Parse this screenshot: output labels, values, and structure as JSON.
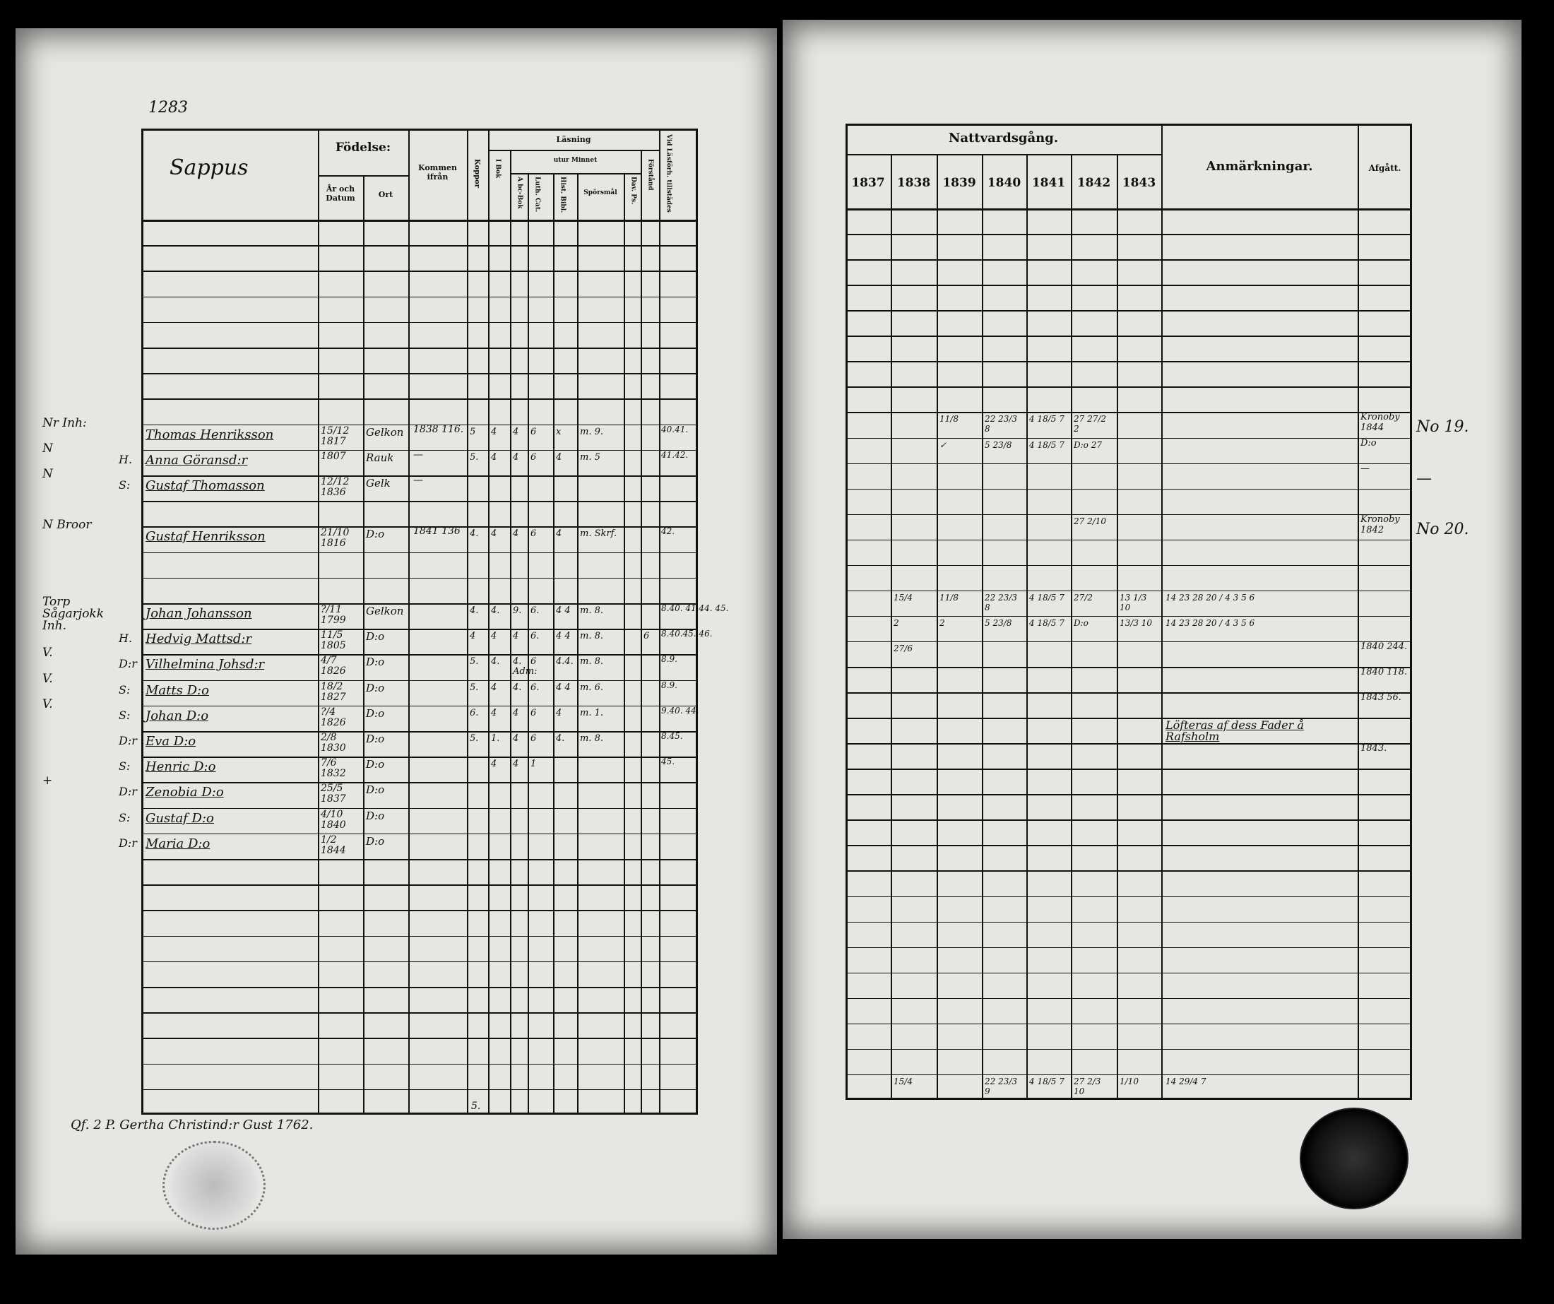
{
  "left_page": {
    "page_number": "1283",
    "header": {
      "village": "Sappus",
      "birth": "Födelse:",
      "year_date": "År och Datum",
      "place": "Ort",
      "came_from": "Kommen ifrån",
      "smallpox": "Koppor",
      "reading": "Läsning",
      "by_heart": "utur Minnet",
      "in_book": "I Bok",
      "abc_book": "A bc-Bok",
      "luther_cat": "Luth. Cat.",
      "hist": "Hist. Bibl.",
      "questions": "Spörsmål",
      "psalms": "Dav. Ps.",
      "understanding": "Förstånd",
      "attended": "Vid Läsförh. tillstädes"
    },
    "persons": [
      {
        "margin": "Nr Inh:",
        "relation": "",
        "name": "Thomas Henriksson",
        "birth_date": "15/12 1817",
        "birth_place": "Gelkon",
        "came_from": "1838 116.",
        "readings": [
          "5",
          "4",
          "4",
          "6",
          "x",
          "m. 9.",
          "",
          ""
        ],
        "attended": "40.41."
      },
      {
        "margin": "N",
        "relation": "H.",
        "name": "Anna Göransd:r",
        "birth_date": "1807",
        "birth_place": "Rauk",
        "came_from": "—",
        "readings": [
          "5.",
          "4",
          "4",
          "6",
          "4",
          "m. 5",
          "",
          ""
        ],
        "attended": "41.42."
      },
      {
        "margin": "N",
        "relation": "S:",
        "name": "Gustaf Thomasson",
        "birth_date": "12/12 1836",
        "birth_place": "Gelk",
        "came_from": "—",
        "readings": [
          "",
          "",
          "",
          "",
          "",
          "",
          "",
          ""
        ],
        "attended": ""
      },
      {
        "margin": "N Broor",
        "relation": "",
        "name": "Gustaf Henriksson",
        "birth_date": "21/10 1816",
        "birth_place": "D:o",
        "came_from": "1841 136",
        "readings": [
          "4.",
          "4",
          "4",
          "6",
          "4",
          "m. Skrf.",
          "",
          ""
        ],
        "attended": "42."
      },
      {
        "margin": "Torp Sågarjokk Inh.",
        "relation": "",
        "name": "Johan Johansson",
        "birth_date": "?/11 1799",
        "birth_place": "Gelkon",
        "came_from": "",
        "readings": [
          "4.",
          "4.",
          "9.",
          "6.",
          "4 4",
          "m. 8.",
          "",
          ""
        ],
        "attended": "8.40. 41.44. 45."
      },
      {
        "margin": "",
        "relation": "H.",
        "name": "Hedvig Mattsd:r",
        "birth_date": "11/5 1805",
        "birth_place": "D:o",
        "came_from": "",
        "readings": [
          "4",
          "4",
          "4",
          "6.",
          "4 4",
          "m. 8.",
          "",
          "6"
        ],
        "attended": "8.40.45. 46."
      },
      {
        "margin": "V.",
        "relation": "D:r",
        "name": "Vilhelmina Johsd:r",
        "birth_date": "4/7 1826",
        "birth_place": "D:o",
        "came_from": "",
        "readings": [
          "5.",
          "4.",
          "4. Adm:",
          "6",
          "4.4.",
          "m. 8.",
          "",
          ""
        ],
        "attended": "8.9."
      },
      {
        "margin": "V.",
        "relation": "S:",
        "name": "Matts D:o",
        "birth_date": "18/2 1827",
        "birth_place": "D:o",
        "came_from": "",
        "readings": [
          "5.",
          "4",
          "4.",
          "6.",
          "4 4",
          "m. 6.",
          "",
          ""
        ],
        "attended": "8.9."
      },
      {
        "margin": "V.",
        "relation": "S:",
        "name": "Johan D:o",
        "birth_date": "?/4 1826",
        "birth_place": "D:o",
        "came_from": "",
        "readings": [
          "6.",
          "4",
          "4",
          "6",
          "4",
          "m. 1.",
          "",
          ""
        ],
        "attended": "9.40. 44."
      },
      {
        "margin": "",
        "relation": "D:r",
        "name": "Eva D:o",
        "birth_date": "2/8 1830",
        "birth_place": "D:o",
        "came_from": "",
        "readings": [
          "5.",
          "1.",
          "4",
          "6",
          "4.",
          "m. 8.",
          "",
          ""
        ],
        "attended": "8.45."
      },
      {
        "margin": "",
        "relation": "S:",
        "name": "Henric D:o",
        "birth_date": "7/6 1832",
        "birth_place": "D:o",
        "came_from": "",
        "readings": [
          "",
          "4",
          "4",
          "1",
          "",
          "",
          "",
          ""
        ],
        "attended": "45."
      },
      {
        "margin": "+",
        "relation": "D:r",
        "name": "Zenobia D:o",
        "birth_date": "25/5 1837",
        "birth_place": "D:o",
        "came_from": "",
        "readings": [
          "",
          "",
          "",
          "",
          "",
          "",
          "",
          ""
        ],
        "attended": ""
      },
      {
        "margin": "",
        "relation": "S:",
        "name": "Gustaf D:o",
        "birth_date": "4/10 1840",
        "birth_place": "D:o",
        "came_from": "",
        "readings": [
          "",
          "",
          "",
          "",
          "",
          "",
          "",
          ""
        ],
        "attended": ""
      },
      {
        "margin": "",
        "relation": "D:r",
        "name": "Maria D:o",
        "birth_date": "1/2 1844",
        "birth_place": "D:o",
        "came_from": "",
        "readings": [
          "",
          "",
          "",
          "",
          "",
          "",
          "",
          ""
        ],
        "attended": ""
      }
    ],
    "footer_note": "Qf. 2 P. Gertha Christind:r Gust 1762.",
    "footer_kopp": "5."
  },
  "right_page": {
    "header": {
      "communion": "Nattvardsgång.",
      "years": [
        "1837",
        "1838",
        "1839",
        "1840",
        "1841",
        "1842",
        "1843"
      ],
      "remarks": "Anmärkningar.",
      "departed": "Afgått."
    },
    "entries": [
      {
        "communion": [
          "",
          "",
          "11/8",
          "22 23/3 8",
          "4 18/5 7",
          "27 27/2 2",
          ""
        ],
        "remark": "",
        "departed": "Kronoby 1844",
        "departed_no": "No 19."
      },
      {
        "communion": [
          "",
          "",
          "✓",
          "5 23/8",
          "4 18/5 7",
          "D:o 27",
          ""
        ],
        "remark": "",
        "departed": "D:o",
        "departed_no": ""
      },
      {
        "communion": [
          "",
          "",
          "",
          "",
          "",
          "",
          ""
        ],
        "remark": "",
        "departed": "—",
        "departed_no": "—"
      },
      {
        "communion": [
          "",
          "",
          "",
          "",
          "",
          "27 2/10",
          ""
        ],
        "remark": "",
        "departed": "Kronoby 1842",
        "departed_no": "No 20."
      },
      {
        "communion": [
          "",
          "15/4",
          "11/8",
          "22 23/3 8",
          "4 18/5 7",
          "27/2",
          "13 1/3 10"
        ],
        "remark": "14 23 28 20 / 4 3 5 6",
        "departed": "",
        "departed_no": ""
      },
      {
        "communion": [
          "",
          "2",
          "2",
          "5 23/8",
          "4 18/5 7",
          "D:o",
          "13/3 10"
        ],
        "remark": "14 23 28 20 / 4 3 5 6",
        "departed": "",
        "departed_no": ""
      },
      {
        "communion": [
          "",
          "27/6",
          "",
          "",
          "",
          "",
          ""
        ],
        "remark": "",
        "departed": "1840 244.",
        "departed_no": ""
      },
      {
        "communion": [
          "",
          "",
          "",
          "",
          "",
          "",
          ""
        ],
        "remark": "",
        "departed": "1840 118.",
        "departed_no": ""
      },
      {
        "communion": [
          "",
          "",
          "",
          "",
          "",
          "",
          ""
        ],
        "remark": "",
        "departed": "1843 56.",
        "departed_no": ""
      },
      {
        "communion": [
          "",
          "",
          "",
          "",
          "",
          "",
          ""
        ],
        "remark": "Löfteras af dess Fader å Rafsholm",
        "departed": "",
        "departed_no": ""
      },
      {
        "communion": [
          "",
          "",
          "",
          "",
          "",
          "",
          ""
        ],
        "remark": "",
        "departed": "1843.",
        "departed_no": ""
      }
    ],
    "totals": {
      "communion": [
        "",
        "15/4",
        "",
        "22 23/3 9",
        "4 18/5 7",
        "27 2/3 10",
        "1/10"
      ],
      "remark": "14 29/4 7"
    }
  },
  "colors": {
    "paper": "#e6e6e4",
    "ink": "#111111",
    "background": "#000000"
  }
}
